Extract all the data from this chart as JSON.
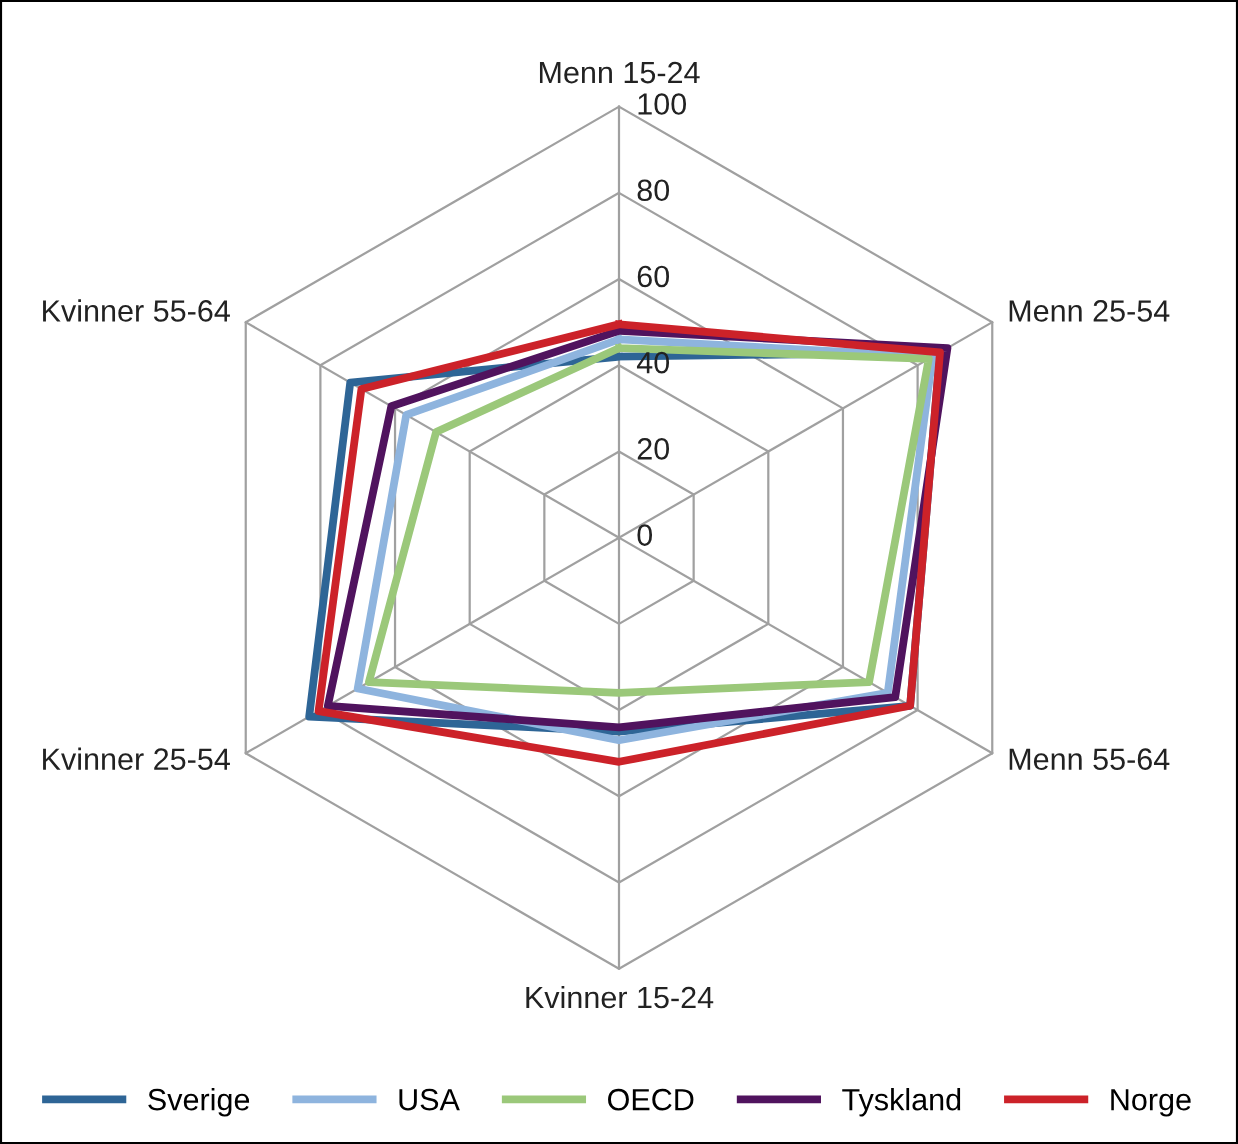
{
  "chart_data": {
    "type": "radar",
    "categories": [
      "Menn 15-24",
      "Menn 25-54",
      "Menn 55-64",
      "Kvinner 15-24",
      "Kvinner 25-54",
      "Kvinner 55-64"
    ],
    "ylim": [
      0,
      100
    ],
    "yticks": [
      0,
      20,
      40,
      60,
      80,
      100
    ],
    "grid": true,
    "legend": "bottom",
    "series": [
      {
        "name": "Sverige",
        "color": "#2e6596",
        "values": [
          42,
          86,
          78,
          45,
          83,
          72
        ]
      },
      {
        "name": "USA",
        "color": "#8eb4de",
        "values": [
          46,
          84,
          72,
          47,
          70,
          57
        ]
      },
      {
        "name": "OECD",
        "color": "#9bc87a",
        "values": [
          44,
          83,
          67,
          36,
          67,
          49
        ]
      },
      {
        "name": "Tyskland",
        "color": "#50135e",
        "values": [
          48,
          88,
          74,
          44,
          78,
          61
        ]
      },
      {
        "name": "Norge",
        "color": "#cc2229",
        "values": [
          49.5,
          86,
          78,
          52,
          80.5,
          69
        ]
      }
    ]
  }
}
